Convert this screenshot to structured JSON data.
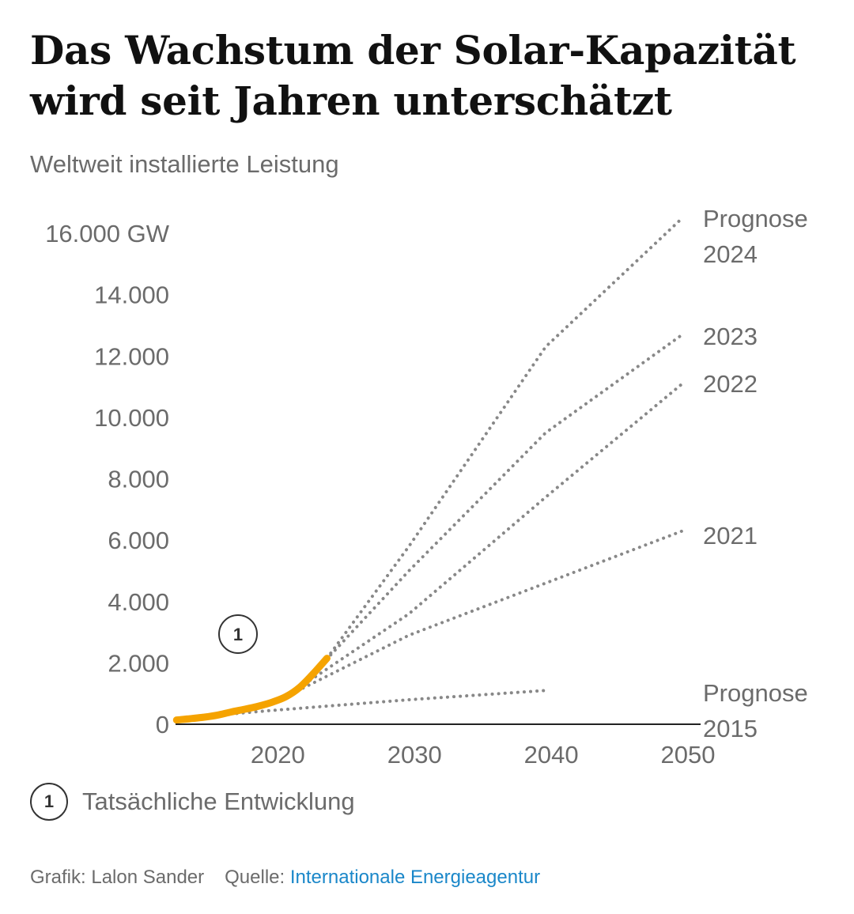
{
  "title": "Das Wachstum der Solar-Kapazität wird seit Jahren unterschätzt",
  "subtitle": "Weltweit installierte Leistung",
  "legend": {
    "badge": "1",
    "label": "Tatsächliche Entwicklung"
  },
  "footer": {
    "credit": "Grafik: Lalon Sander",
    "source_prefix": "Quelle:",
    "source_name": "Internationale Energieagentur"
  },
  "colors": {
    "actual": "#f5a300",
    "forecast": "#888888",
    "axis": "#222222",
    "text": "#6b6b6b",
    "link": "#1a87c9"
  },
  "chart_data": {
    "type": "line",
    "ylabel": "",
    "xlabel": "",
    "xlim": [
      2012,
      2050
    ],
    "ylim": [
      0,
      16000
    ],
    "x_ticks": [
      2020,
      2030,
      2040,
      2050
    ],
    "y_ticks": [
      0,
      2000,
      4000,
      6000,
      8000,
      10000,
      12000,
      14000,
      16000
    ],
    "y_tick_labels": [
      "0",
      "2.000",
      "4.000",
      "6.000",
      "8.000",
      "10.000",
      "12.000",
      "14.000",
      "16.000 GW"
    ],
    "grid": false,
    "actual": {
      "label_badge": "1",
      "x": [
        2013,
        2014,
        2015,
        2016,
        2017,
        2018,
        2019,
        2020,
        2021,
        2022,
        2023,
        2024
      ],
      "y": [
        140,
        180,
        230,
        300,
        400,
        490,
        590,
        720,
        900,
        1200,
        1650,
        2150
      ]
    },
    "forecasts": [
      {
        "label": [
          "Prognose",
          "2024"
        ],
        "x": [
          2024,
          2030,
          2040,
          2050
        ],
        "y": [
          2150,
          5800,
          12300,
          16500
        ]
      },
      {
        "label": [
          "2023"
        ],
        "x": [
          2023,
          2030,
          2040,
          2050
        ],
        "y": [
          1650,
          5000,
          9500,
          12700
        ]
      },
      {
        "label": [
          "2022"
        ],
        "x": [
          2022,
          2030,
          2040,
          2050
        ],
        "y": [
          1200,
          3600,
          7400,
          11100
        ]
      },
      {
        "label": [
          "2021"
        ],
        "x": [
          2021,
          2030,
          2040,
          2050
        ],
        "y": [
          900,
          2900,
          4600,
          6300
        ]
      },
      {
        "label": [
          "Prognose",
          "2015"
        ],
        "x": [
          2016,
          2020,
          2030,
          2040
        ],
        "y": [
          300,
          450,
          800,
          1100
        ]
      }
    ]
  }
}
